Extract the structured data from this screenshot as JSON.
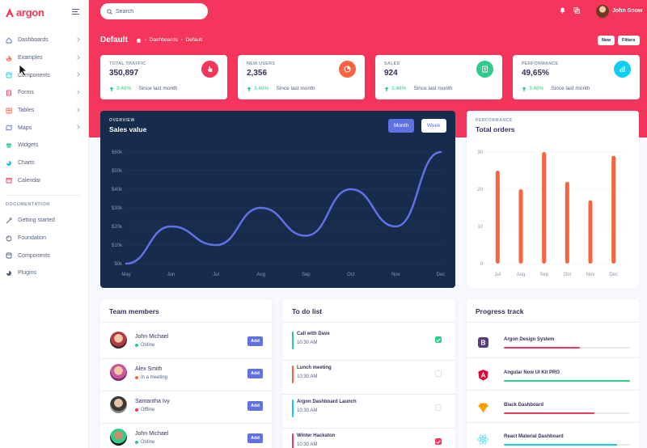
{
  "brand": {
    "name": "argon"
  },
  "sidebar": {
    "items": [
      {
        "label": "Dashboards",
        "icon": "house-icon",
        "color": "#5e72e4",
        "chevron": true
      },
      {
        "label": "Examples",
        "icon": "ship-icon",
        "color": "#fb6340",
        "chevron": true
      },
      {
        "label": "Components",
        "icon": "ui-icon",
        "color": "#11cdef",
        "chevron": true
      },
      {
        "label": "Forms",
        "icon": "form-icon",
        "color": "#f5365c",
        "chevron": true
      },
      {
        "label": "Tables",
        "icon": "table-icon",
        "color": "#fb6340",
        "chevron": true
      },
      {
        "label": "Maps",
        "icon": "map-icon",
        "color": "#5e72e4",
        "chevron": true
      },
      {
        "label": "Widgets",
        "icon": "archive-icon",
        "color": "#2dce89",
        "chevron": false
      },
      {
        "label": "Charts",
        "icon": "pie-icon",
        "color": "#11cdef",
        "chevron": false
      },
      {
        "label": "Calendar",
        "icon": "calendar-icon",
        "color": "#f5365c",
        "chevron": false
      }
    ],
    "documentation_heading": "DOCUMENTATION",
    "doc_items": [
      {
        "label": "Getting started",
        "icon": "spaceship-icon"
      },
      {
        "label": "Foundation",
        "icon": "palette-icon"
      },
      {
        "label": "Components",
        "icon": "ui-icon"
      },
      {
        "label": "Plugins",
        "icon": "chart-pie-icon"
      }
    ]
  },
  "header": {
    "search_placeholder": "Search",
    "user_name": "John Snow",
    "page_title": "Default",
    "breadcrumb": [
      "Dashboards",
      "Default"
    ],
    "new_label": "New",
    "filters_label": "Filters"
  },
  "stats": [
    {
      "label": "TOTAL TRAFFIC",
      "value": "350,897",
      "change": "3.48%",
      "since": "Since last month",
      "icon": "hand-pointer-icon",
      "color": "#f5365c"
    },
    {
      "label": "NEW USERS",
      "value": "2,356",
      "change": "3.48%",
      "since": "Since last month",
      "icon": "pie-chart-icon",
      "color": "#fb6340"
    },
    {
      "label": "SALES",
      "value": "924",
      "change": "3.48%",
      "since": "Since last month",
      "icon": "money-coins-icon",
      "color": "#2dce89"
    },
    {
      "label": "PERFORMANCE",
      "value": "49,65%",
      "change": "3.48%",
      "since": "Since last month",
      "icon": "bar-chart-icon",
      "color": "#11cdef"
    }
  ],
  "sales_chart": {
    "eyebrow": "OVERVIEW",
    "title": "Sales value",
    "month_label": "Month",
    "week_label": "Week"
  },
  "orders_chart": {
    "eyebrow": "PERFORMANCE",
    "title": "Total orders"
  },
  "chart_data": [
    {
      "type": "line",
      "title": "Sales value",
      "categories": [
        "May",
        "Jun",
        "Jul",
        "Aug",
        "Sep",
        "Oct",
        "Nov",
        "Dec"
      ],
      "values": [
        0,
        20,
        10,
        30,
        15,
        40,
        20,
        60
      ],
      "y_tick_labels": [
        "$0k",
        "$10k",
        "$20k",
        "$30k",
        "$40k",
        "$50k",
        "$60k"
      ],
      "ylim": [
        0,
        60
      ],
      "color": "#5e72e4",
      "grid": true
    },
    {
      "type": "bar",
      "title": "Total orders",
      "categories": [
        "Jul",
        "Aug",
        "Sep",
        "Oct",
        "Nov",
        "Dec"
      ],
      "values": [
        25,
        20,
        30,
        22,
        17,
        29
      ],
      "y_tick_labels": [
        "0",
        "10",
        "20",
        "30"
      ],
      "ylim": [
        0,
        30
      ],
      "color": "#fb6340",
      "grid": true
    }
  ],
  "team": {
    "title": "Team members",
    "add_label": "Add",
    "members": [
      {
        "name": "John Michael",
        "status": "Online",
        "status_color": "#2dce89"
      },
      {
        "name": "Alex Smith",
        "status": "In a meeting",
        "status_color": "#fb6340"
      },
      {
        "name": "Samantha Ivy",
        "status": "Offline",
        "status_color": "#f5365c"
      },
      {
        "name": "John Michael",
        "status": "Online",
        "status_color": "#2dce89"
      }
    ]
  },
  "todo": {
    "title": "To do list",
    "items": [
      {
        "title": "Call with Dave",
        "time": "10:30 AM",
        "color": "#2dce89",
        "done": true,
        "check_color": "#2dce89"
      },
      {
        "title": "Lunch meeting",
        "time": "10:30 AM",
        "color": "#fb6340",
        "done": false,
        "check_color": "#fb6340"
      },
      {
        "title": "Argon Dashboard Launch",
        "time": "10:30 AM",
        "color": "#11cdef",
        "done": false,
        "check_color": "#11cdef"
      },
      {
        "title": "Winter Hackaton",
        "time": "10:30 AM",
        "color": "#f5365c",
        "done": true,
        "check_color": "#f5365c"
      }
    ]
  },
  "progress": {
    "title": "Progress track",
    "projects": [
      {
        "name": "Argon Design System",
        "progress": 0.6,
        "color": "#f5365c",
        "logo": "bootstrap-logo-icon"
      },
      {
        "name": "Angular Now UI Kit PRO",
        "progress": 1.0,
        "color": "#2dce89",
        "logo": "angular-logo-icon"
      },
      {
        "name": "Black Dashboard",
        "progress": 0.72,
        "color": "#f5365c",
        "logo": "sketch-logo-icon"
      },
      {
        "name": "React Material Dashboard",
        "progress": 0.9,
        "color": "#11cdef",
        "logo": "react-logo-icon"
      }
    ]
  }
}
